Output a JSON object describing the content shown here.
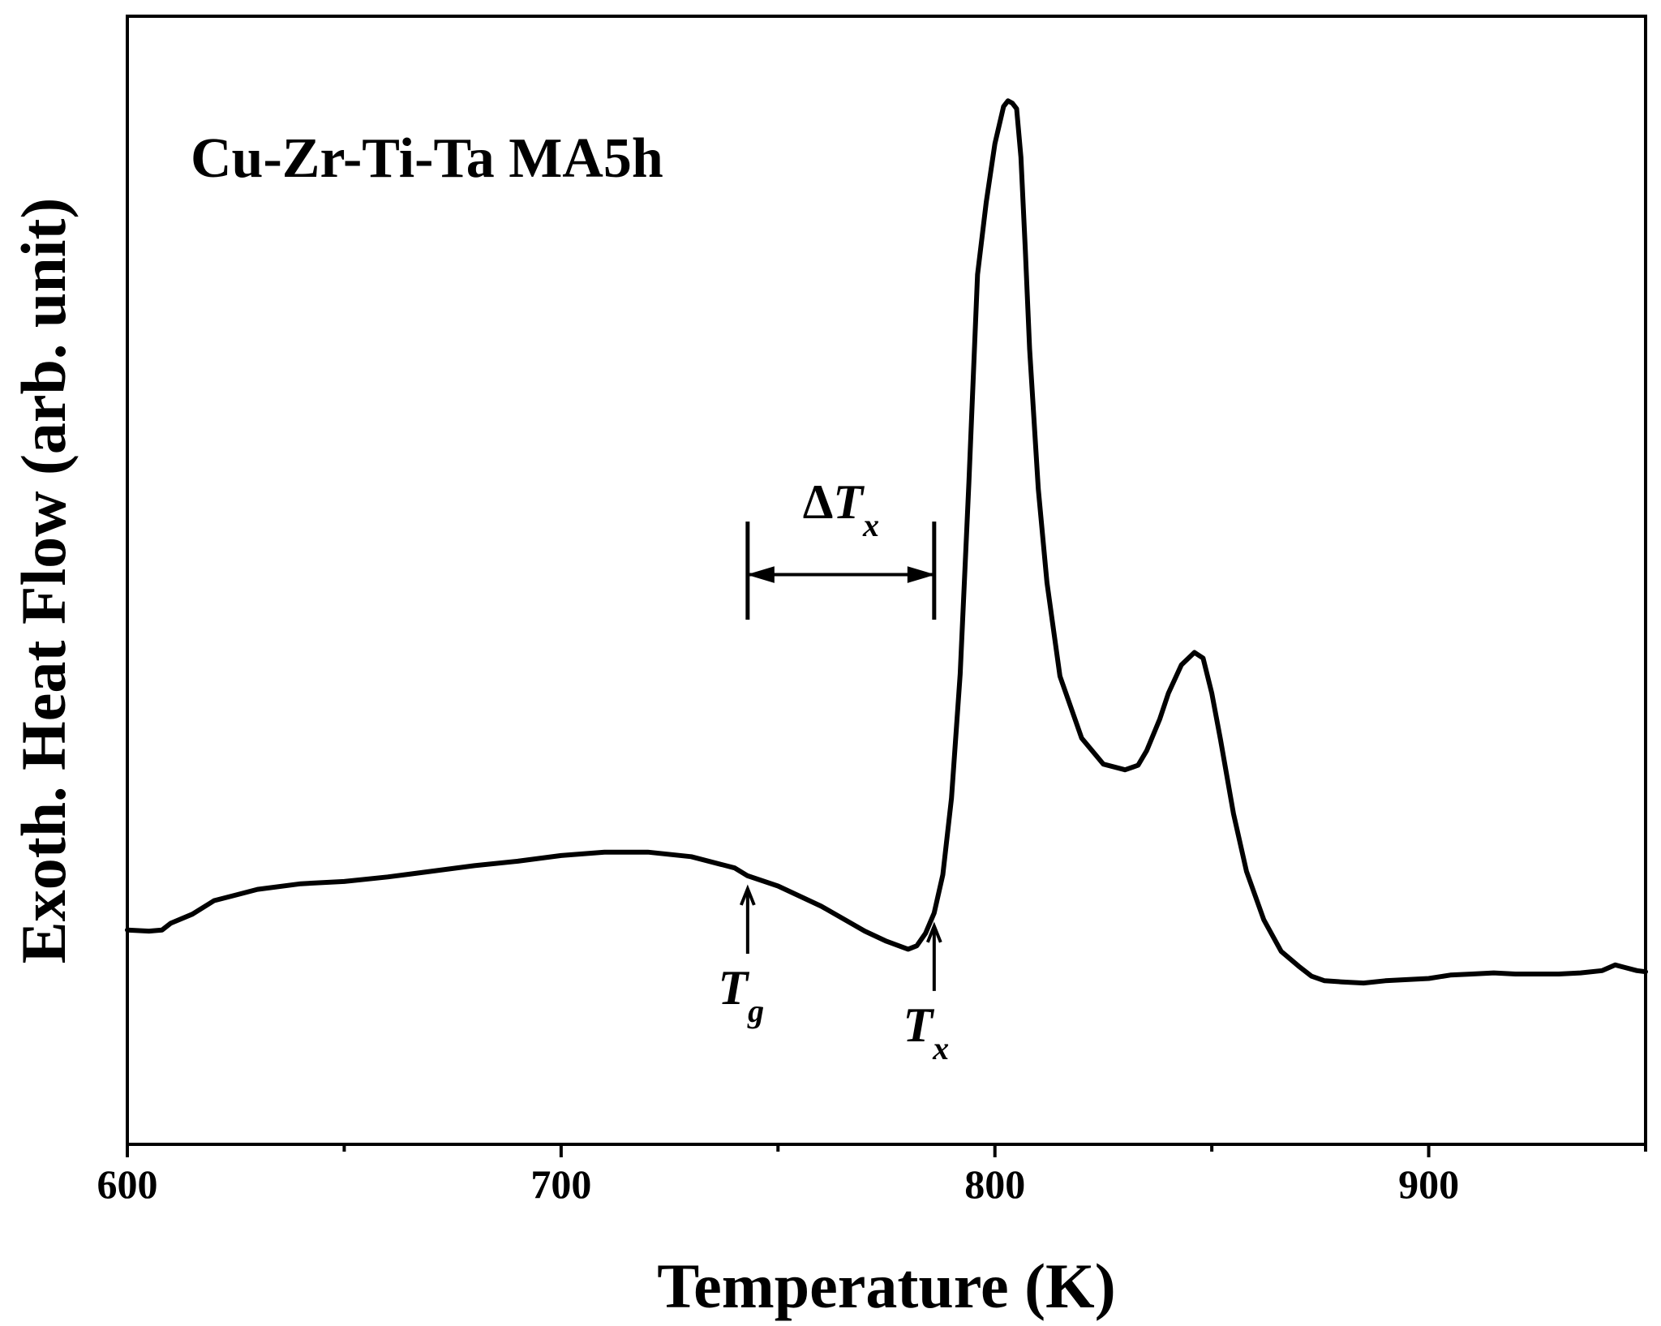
{
  "chart_data": {
    "type": "line",
    "title": "Cu-Zr-Ti-Ta  MA5h",
    "xlabel": "Temperature (K)",
    "ylabel": "Exoth. Heat Flow (arb. unit)",
    "xlim": [
      600,
      950
    ],
    "ylim": [
      0,
      100
    ],
    "x_ticks": [
      600,
      700,
      800,
      900
    ],
    "x_minor_ticks": [
      650,
      750,
      850,
      950
    ],
    "y_ticks_labeled": false,
    "grid": false,
    "legend": "none",
    "line_color": "#000000",
    "series": [
      {
        "x": [
          600,
          605,
          608,
          610,
          615,
          620,
          625,
          630,
          640,
          650,
          660,
          670,
          680,
          690,
          700,
          710,
          720,
          730,
          740,
          743,
          750,
          760,
          770,
          775,
          780,
          782,
          784,
          786,
          788,
          790,
          792,
          794,
          796,
          798,
          800,
          802,
          803,
          804,
          805,
          806,
          807,
          808,
          810,
          812,
          815,
          820,
          825,
          830,
          833,
          835,
          838,
          840,
          843,
          846,
          848,
          850,
          852,
          855,
          858,
          862,
          866,
          870,
          873,
          876,
          880,
          885,
          890,
          895,
          900,
          905,
          910,
          915,
          920,
          925,
          930,
          935,
          940,
          943,
          945,
          948,
          950
        ],
        "y": [
          19.0,
          18.9,
          19.0,
          19.6,
          20.4,
          21.6,
          22.1,
          22.6,
          23.1,
          23.3,
          23.7,
          24.2,
          24.7,
          25.1,
          25.6,
          25.9,
          25.9,
          25.5,
          24.5,
          23.8,
          22.9,
          21.1,
          18.9,
          18.0,
          17.3,
          17.6,
          18.7,
          20.5,
          23.9,
          30.7,
          41.7,
          58.6,
          77.1,
          83.5,
          88.7,
          92.0,
          92.5,
          92.3,
          91.8,
          87.5,
          79.3,
          70.5,
          58.1,
          49.8,
          41.5,
          36.0,
          33.7,
          33.2,
          33.6,
          34.9,
          37.7,
          40.0,
          42.5,
          43.6,
          43.1,
          40.0,
          35.9,
          29.3,
          24.2,
          19.9,
          17.1,
          15.8,
          14.9,
          14.5,
          14.4,
          14.3,
          14.5,
          14.6,
          14.7,
          15.0,
          15.1,
          15.2,
          15.1,
          15.1,
          15.1,
          15.2,
          15.4,
          15.9,
          15.7,
          15.4,
          15.3
        ]
      }
    ],
    "annotations": {
      "tg": {
        "symbol": "T",
        "subscript": "g",
        "x": 743
      },
      "tx": {
        "symbol": "T",
        "subscript": "x",
        "x": 786
      },
      "delta_tx": {
        "prefix": "Δ",
        "symbol": "T",
        "subscript": "x",
        "x_start": 743,
        "x_end": 786
      }
    }
  }
}
